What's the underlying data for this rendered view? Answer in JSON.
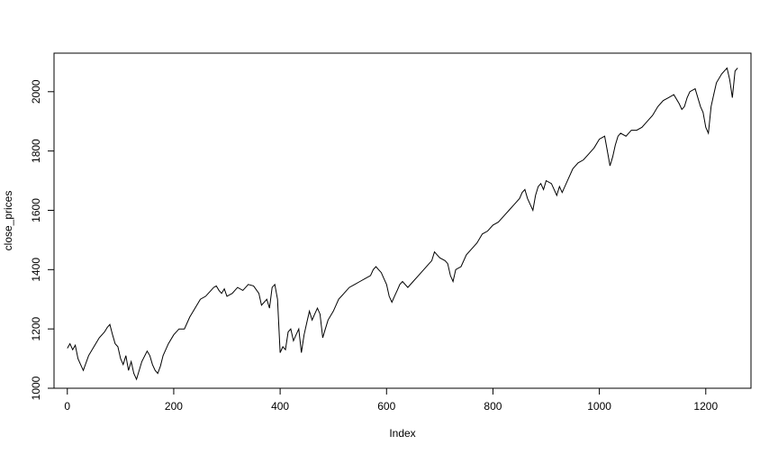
{
  "chart_data": {
    "type": "line",
    "title": "",
    "xlabel": "Index",
    "ylabel": "close_prices",
    "xlim": [
      -25,
      1285
    ],
    "ylim": [
      1000,
      2130
    ],
    "grid": false,
    "x_ticks": [
      0,
      200,
      400,
      600,
      800,
      1000,
      1200
    ],
    "y_ticks": [
      1000,
      1200,
      1400,
      1600,
      1800,
      2000
    ],
    "series": [
      {
        "name": "",
        "color": "#000000",
        "x": [
          0,
          5,
          10,
          15,
          20,
          25,
          30,
          40,
          50,
          60,
          70,
          75,
          80,
          85,
          90,
          95,
          100,
          105,
          110,
          115,
          120,
          125,
          130,
          140,
          150,
          155,
          160,
          165,
          170,
          175,
          180,
          190,
          200,
          210,
          220,
          230,
          240,
          250,
          260,
          265,
          270,
          275,
          280,
          285,
          290,
          295,
          300,
          310,
          320,
          330,
          340,
          350,
          360,
          365,
          370,
          375,
          380,
          385,
          390,
          395,
          400,
          405,
          410,
          415,
          420,
          425,
          430,
          435,
          440,
          445,
          450,
          455,
          460,
          465,
          470,
          475,
          480,
          485,
          490,
          500,
          510,
          520,
          530,
          540,
          550,
          560,
          570,
          575,
          580,
          585,
          590,
          595,
          600,
          605,
          610,
          615,
          620,
          625,
          630,
          640,
          650,
          660,
          670,
          680,
          685,
          690,
          695,
          700,
          710,
          715,
          720,
          725,
          730,
          740,
          750,
          760,
          770,
          780,
          790,
          800,
          810,
          820,
          830,
          840,
          850,
          855,
          860,
          865,
          870,
          875,
          880,
          885,
          890,
          895,
          900,
          910,
          920,
          925,
          930,
          940,
          950,
          960,
          970,
          980,
          990,
          1000,
          1010,
          1015,
          1020,
          1025,
          1030,
          1035,
          1040,
          1050,
          1060,
          1070,
          1080,
          1090,
          1100,
          1110,
          1120,
          1130,
          1140,
          1150,
          1155,
          1160,
          1165,
          1170,
          1180,
          1190,
          1195,
          1200,
          1205,
          1210,
          1215,
          1220,
          1230,
          1240,
          1245,
          1250,
          1255,
          1260
        ],
        "y": [
          1135,
          1150,
          1130,
          1145,
          1100,
          1080,
          1060,
          1110,
          1140,
          1170,
          1190,
          1205,
          1215,
          1180,
          1150,
          1140,
          1100,
          1080,
          1110,
          1060,
          1090,
          1050,
          1030,
          1090,
          1125,
          1110,
          1080,
          1060,
          1050,
          1075,
          1110,
          1150,
          1180,
          1200,
          1200,
          1240,
          1270,
          1300,
          1310,
          1320,
          1330,
          1340,
          1345,
          1330,
          1320,
          1335,
          1310,
          1320,
          1340,
          1330,
          1350,
          1345,
          1320,
          1280,
          1290,
          1300,
          1270,
          1340,
          1350,
          1300,
          1120,
          1140,
          1130,
          1190,
          1200,
          1160,
          1180,
          1200,
          1120,
          1180,
          1220,
          1260,
          1230,
          1250,
          1270,
          1250,
          1170,
          1200,
          1230,
          1260,
          1300,
          1320,
          1340,
          1350,
          1360,
          1370,
          1380,
          1400,
          1410,
          1400,
          1390,
          1370,
          1350,
          1310,
          1290,
          1310,
          1330,
          1350,
          1360,
          1340,
          1360,
          1380,
          1400,
          1420,
          1430,
          1460,
          1450,
          1440,
          1430,
          1420,
          1380,
          1360,
          1400,
          1410,
          1450,
          1470,
          1490,
          1520,
          1530,
          1550,
          1560,
          1580,
          1600,
          1620,
          1640,
          1660,
          1670,
          1640,
          1620,
          1600,
          1650,
          1680,
          1690,
          1670,
          1700,
          1690,
          1650,
          1680,
          1660,
          1700,
          1740,
          1760,
          1770,
          1790,
          1810,
          1840,
          1850,
          1800,
          1750,
          1780,
          1820,
          1850,
          1860,
          1850,
          1870,
          1870,
          1880,
          1900,
          1920,
          1950,
          1970,
          1980,
          1990,
          1960,
          1940,
          1950,
          1980,
          2000,
          2010,
          1950,
          1930,
          1880,
          1860,
          1950,
          1990,
          2030,
          2060,
          2080,
          2040,
          1980,
          2070,
          2080
        ]
      }
    ]
  }
}
